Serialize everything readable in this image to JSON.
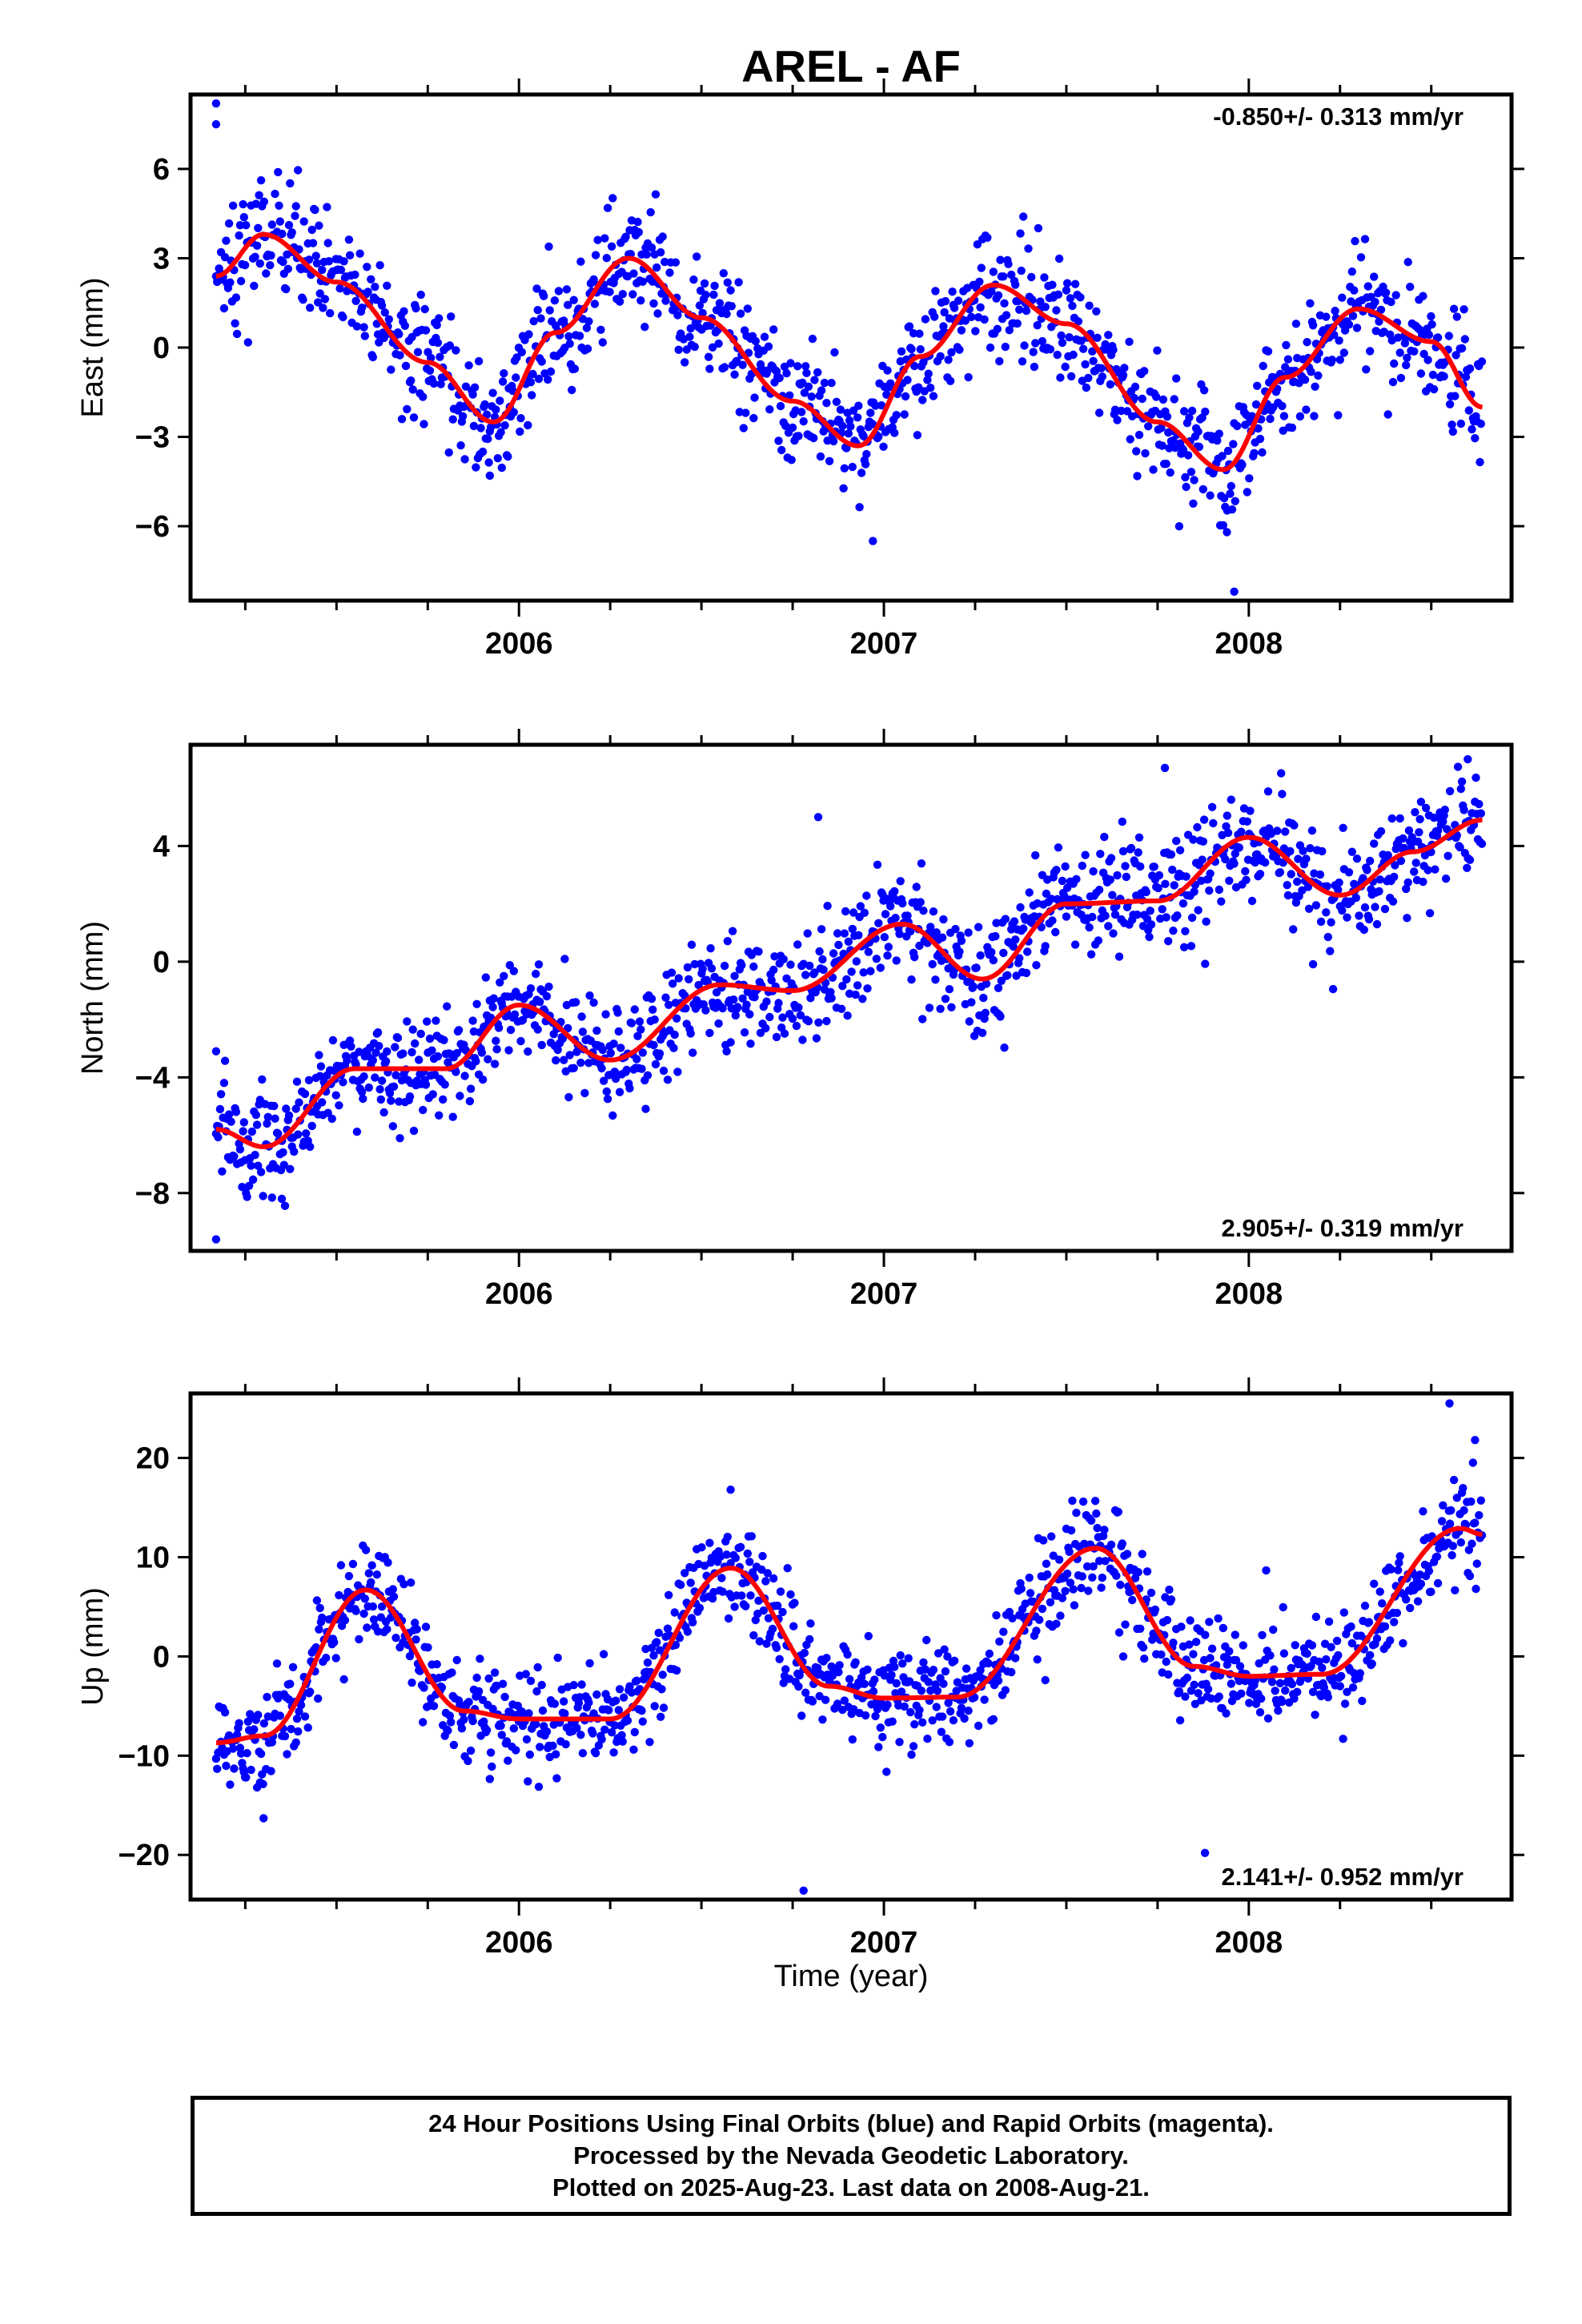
{
  "chart_data": [
    {
      "type": "scatter",
      "title": "AREL - AF",
      "ylabel": "East (mm)",
      "xlim": [
        2005.1,
        2008.72
      ],
      "ylim": [
        -8.5,
        8.5
      ],
      "yticks": [
        6,
        3,
        0,
        -3,
        -6
      ],
      "ytick_labels": [
        "6",
        "3",
        "0",
        "−3",
        "−6"
      ],
      "xticks": [
        2006,
        2007,
        2008
      ],
      "xtick_labels": [
        "2006",
        "2007",
        "2008"
      ],
      "rate_text": "-0.850+/- 0.313 mm/yr",
      "rate_position": "top-right",
      "start": 2005.17,
      "end": 2008.64,
      "model": {
        "offset": 0.0,
        "rate_mm_per_yr": -0.85,
        "annual_cos": 0.0,
        "annual_sin": 3.1,
        "semiannual_cos": 0.0,
        "semiannual_sin": 0.0
      },
      "fit_curve": {
        "x": [
          2005.17,
          2005.3,
          2005.5,
          2005.75,
          2005.93,
          2006.1,
          2006.3,
          2006.5,
          2006.75,
          2006.93,
          2007.1,
          2007.3,
          2007.5,
          2007.75,
          2007.93,
          2008.1,
          2008.3,
          2008.5,
          2008.64
        ],
        "y": [
          2.4,
          3.8,
          2.2,
          -0.5,
          -2.5,
          0.5,
          3.0,
          1.0,
          -1.8,
          -3.3,
          -0.3,
          2.1,
          0.8,
          -2.5,
          -4.1,
          -1.0,
          1.3,
          0.2,
          -2.0
        ]
      },
      "scatter_points": [
        {
          "x": 2005.17,
          "y": 8.2
        },
        {
          "x": 2005.17,
          "y": 7.5
        },
        {
          "x": 2005.92,
          "y": -4.3
        },
        {
          "x": 2006.97,
          "y": -6.5
        },
        {
          "x": 2007.96,
          "y": -8.2
        },
        {
          "x": 2007.94,
          "y": -6.2
        }
      ],
      "scatter_color": "#0000ff",
      "fit_color": "#ff0000"
    },
    {
      "type": "scatter",
      "ylabel": "North (mm)",
      "xlim": [
        2005.1,
        2008.72
      ],
      "ylim": [
        -10.0,
        7.5
      ],
      "yticks": [
        4,
        0,
        -4,
        -8
      ],
      "ytick_labels": [
        "4",
        "0",
        "−4",
        "−8"
      ],
      "xticks": [
        2006,
        2007,
        2008
      ],
      "xtick_labels": [
        "2006",
        "2007",
        "2008"
      ],
      "rate_text": "2.905+/- 0.319 mm/yr",
      "rate_position": "bottom-right",
      "start": 2005.17,
      "end": 2008.64,
      "model": {
        "offset": -1.0,
        "rate_mm_per_yr": 2.9,
        "annual_cos": 0.0,
        "annual_sin": 1.1,
        "semiannual_cos": 0.0,
        "semiannual_sin": 0.0
      },
      "fit_curve": {
        "x": [
          2005.17,
          2005.3,
          2005.55,
          2005.8,
          2006.0,
          2006.25,
          2006.55,
          2006.75,
          2007.05,
          2007.27,
          2007.5,
          2007.75,
          2008.0,
          2008.25,
          2008.45,
          2008.64
        ],
        "y": [
          -5.8,
          -6.4,
          -3.7,
          -3.7,
          -1.5,
          -3.4,
          -0.8,
          -1.0,
          1.3,
          -0.6,
          2.0,
          2.1,
          4.3,
          2.3,
          3.8,
          4.9
        ]
      },
      "scatter_points": [
        {
          "x": 2005.17,
          "y": -9.6
        },
        {
          "x": 2005.17,
          "y": -3.1
        },
        {
          "x": 2006.82,
          "y": 5.0
        },
        {
          "x": 2007.77,
          "y": 6.7
        },
        {
          "x": 2008.6,
          "y": 7.0
        },
        {
          "x": 2005.35,
          "y": -8.2
        }
      ],
      "scatter_color": "#0000ff",
      "fit_color": "#ff0000"
    },
    {
      "type": "scatter",
      "ylabel": "Up (mm)",
      "xlabel": "Time (year)",
      "xlim": [
        2005.1,
        2008.72
      ],
      "ylim": [
        -24.5,
        26.5
      ],
      "yticks": [
        20,
        10,
        0,
        -10,
        -20
      ],
      "ytick_labels": [
        "20",
        "10",
        "0",
        "−10",
        "−20"
      ],
      "xticks": [
        2006,
        2007,
        2008
      ],
      "xtick_labels": [
        "2006",
        "2007",
        "2008"
      ],
      "rate_text": "2.141+/- 0.952 mm/yr",
      "rate_position": "bottom-right",
      "start": 2005.17,
      "end": 2008.64,
      "model": {
        "offset": 0.5,
        "rate_mm_per_yr": 2.1,
        "annual_cos": -6.5,
        "annual_sin": -3.6,
        "semiannual_cos": 0.0,
        "semiannual_sin": 0.0
      },
      "fit_curve": {
        "x": [
          2005.17,
          2005.3,
          2005.58,
          2005.85,
          2006.0,
          2006.25,
          2006.58,
          2006.85,
          2007.0,
          2007.2,
          2007.58,
          2007.85,
          2008.0,
          2008.2,
          2008.58,
          2008.64
        ],
        "y": [
          -8.7,
          -8.0,
          6.7,
          -5.5,
          -6.3,
          -6.3,
          8.9,
          -3.0,
          -4.2,
          -4.1,
          10.9,
          -1.0,
          -2.0,
          -1.8,
          12.9,
          12.3
        ]
      },
      "scatter_points": [
        {
          "x": 2006.78,
          "y": -23.6
        },
        {
          "x": 2007.88,
          "y": -19.8
        },
        {
          "x": 2008.55,
          "y": 25.5
        },
        {
          "x": 2008.62,
          "y": 21.8
        },
        {
          "x": 2005.3,
          "y": -16.3
        },
        {
          "x": 2006.58,
          "y": 16.8
        }
      ],
      "scatter_color": "#0000ff",
      "fit_color": "#ff0000"
    }
  ],
  "footer": {
    "line1": "24 Hour Positions Using Final Orbits (blue) and Rapid Orbits (magenta).",
    "line2": "Processed by the Nevada Geodetic Laboratory.",
    "line3": "Plotted on 2025-Aug-23. Last data on 2008-Aug-21."
  }
}
